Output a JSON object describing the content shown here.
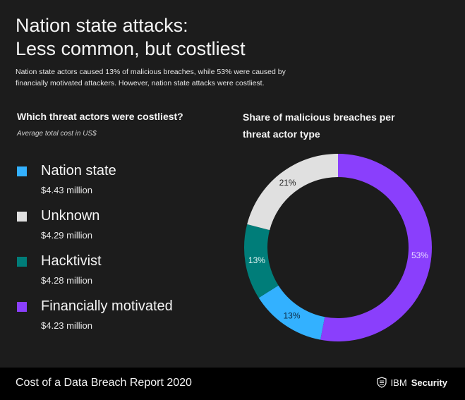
{
  "title_line1": "Nation state attacks:",
  "title_line2": "Less common, but costliest",
  "subtitle_line1": "Nation state actors caused 13% of malicious breaches, while 53% were caused by",
  "subtitle_line2": "financially motivated attackers. However, nation state attacks were costliest.",
  "left_panel": {
    "heading": "Which threat actors were costliest?",
    "subheading": "Average total cost in US$",
    "items": [
      {
        "name": "Nation state",
        "value": "$4.43 million",
        "color": "#33b1ff"
      },
      {
        "name": "Unknown",
        "value": "$4.29 million",
        "color": "#e0e0e0"
      },
      {
        "name": "Hacktivist",
        "value": "$4.28 million",
        "color": "#007d79"
      },
      {
        "name": "Financially motivated",
        "value": "$4.23 million",
        "color": "#8a3ffc"
      }
    ]
  },
  "right_panel": {
    "heading_line1": "Share of malicious breaches per",
    "heading_line2": "threat actor type"
  },
  "chart_data": {
    "type": "pie",
    "title": "Share of malicious breaches per threat actor type",
    "slices": [
      {
        "name": "Financially motivated",
        "value": 53,
        "label": "53%",
        "color": "#8a3ffc",
        "label_color": "#e8dcff"
      },
      {
        "name": "Nation state",
        "value": 13,
        "label": "13%",
        "color": "#33b1ff",
        "label_color": "#0b2a44"
      },
      {
        "name": "Hacktivist",
        "value": 13,
        "label": "13%",
        "color": "#007d79",
        "label_color": "#e6f7f6"
      },
      {
        "name": "Unknown",
        "value": 21,
        "label": "21%",
        "color": "#e0e0e0",
        "label_color": "#222222"
      }
    ],
    "donut": true
  },
  "footer": {
    "report": "Cost of a Data Breach Report 2020",
    "brand_ibm": "IBM",
    "brand_security": "Security",
    "shield_icon": "shield-icon"
  }
}
